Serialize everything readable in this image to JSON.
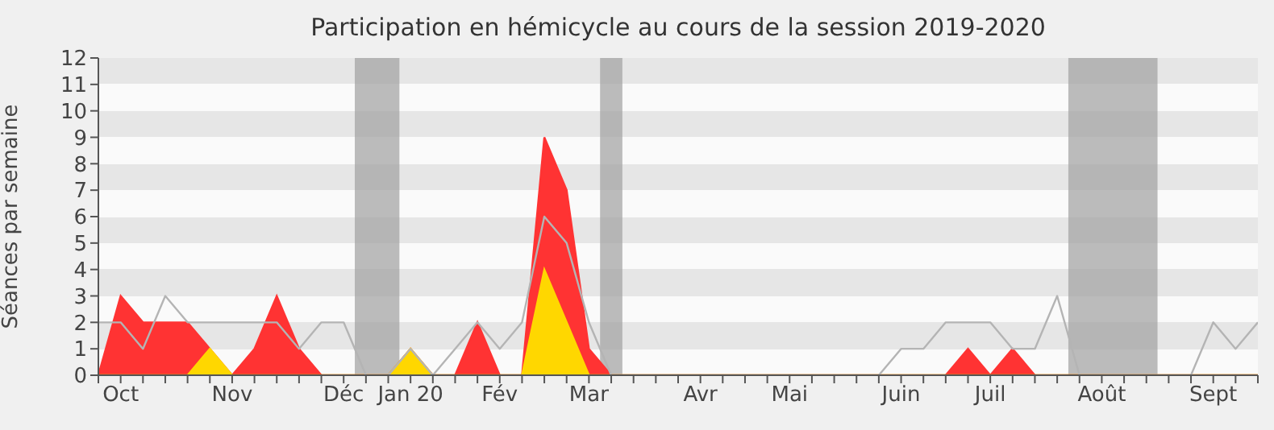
{
  "chart_data": {
    "type": "area",
    "title": "Participation en hémicycle au cours de la session 2019-2020",
    "ylabel": "Séances par semaine",
    "categories": [
      null,
      "Oct",
      null,
      null,
      null,
      null,
      "Nov",
      null,
      null,
      null,
      null,
      "Déc",
      null,
      null,
      "Jan 20",
      null,
      null,
      null,
      "Fév",
      null,
      null,
      null,
      "Mar",
      null,
      null,
      null,
      null,
      "Avr",
      null,
      null,
      null,
      "Mai",
      null,
      null,
      null,
      null,
      "Juin",
      null,
      null,
      null,
      "Juil",
      null,
      null,
      null,
      null,
      "Août",
      null,
      null,
      null,
      null,
      "Sept",
      null,
      null
    ],
    "series": [
      {
        "color": "#ff3333",
        "values": [
          0,
          3,
          2,
          2,
          2,
          1,
          0,
          1,
          3,
          1,
          0,
          0,
          0,
          0,
          1,
          0,
          0,
          2,
          0,
          0,
          9,
          7,
          1,
          0,
          0,
          0,
          0,
          0,
          0,
          0,
          0,
          0,
          0,
          0,
          0,
          0,
          0,
          0,
          0,
          1,
          0,
          1,
          0,
          0,
          0,
          0,
          0,
          0,
          0,
          0,
          0,
          0,
          0
        ]
      },
      {
        "color": "#ffd700",
        "values": [
          0,
          0,
          0,
          0,
          0,
          1,
          0,
          0,
          0,
          0,
          0,
          0,
          0,
          0,
          1,
          0,
          0,
          0,
          0,
          0,
          4,
          2,
          0,
          0,
          0,
          0,
          0,
          0,
          0,
          0,
          0,
          0,
          0,
          0,
          0,
          0,
          0,
          0,
          0,
          0,
          0,
          0,
          0,
          0,
          0,
          0,
          0,
          0,
          0,
          0,
          0,
          0,
          0
        ]
      },
      {
        "type": "line",
        "color": "#b4b4b4",
        "values": [
          2,
          2,
          1,
          3,
          2,
          2,
          2,
          2,
          2,
          1,
          2,
          2,
          0,
          0,
          1,
          0,
          1,
          2,
          1,
          2,
          6,
          5,
          2,
          0,
          0,
          0,
          0,
          0,
          0,
          0,
          0,
          0,
          0,
          0,
          0,
          0,
          1,
          1,
          2,
          2,
          2,
          1,
          1,
          3,
          0,
          0,
          0,
          0,
          0,
          0,
          2,
          1,
          2
        ]
      }
    ],
    "ylim": [
      0,
      12
    ],
    "yticks": [
      0,
      1,
      2,
      3,
      4,
      5,
      6,
      7,
      8,
      9,
      10,
      11,
      12
    ],
    "marker": "none",
    "legend": false
  }
}
